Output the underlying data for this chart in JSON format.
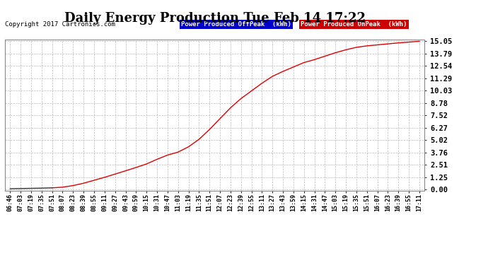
{
  "title": "Daily Energy Production Tue Feb 14 17:22",
  "copyright_text": "Copyright 2017 Cartronics.com",
  "legend_offpeak_label": "Power Produced OffPeak  (kWh)",
  "legend_onpeak_label": "Power Produced OnPeak  (kWh)",
  "legend_offpeak_bg": "#0000cc",
  "legend_onpeak_bg": "#cc0000",
  "background_color": "#ffffff",
  "plot_bg_color": "#ffffff",
  "grid_color": "#bbbbbb",
  "title_fontsize": 13,
  "yticks": [
    0.0,
    1.25,
    2.51,
    3.76,
    5.02,
    6.27,
    7.52,
    8.78,
    10.03,
    11.29,
    12.54,
    13.79,
    15.05
  ],
  "ymax": 15.05,
  "ymin": 0.0,
  "xtick_labels": [
    "06:46",
    "07:03",
    "07:19",
    "07:35",
    "07:51",
    "08:07",
    "08:23",
    "08:39",
    "08:55",
    "09:11",
    "09:27",
    "09:43",
    "09:59",
    "10:15",
    "10:31",
    "10:47",
    "11:03",
    "11:19",
    "11:35",
    "11:51",
    "12:07",
    "12:23",
    "12:39",
    "12:55",
    "13:11",
    "13:27",
    "13:43",
    "13:59",
    "14:15",
    "14:31",
    "14:47",
    "15:03",
    "15:19",
    "15:35",
    "15:51",
    "16:07",
    "16:23",
    "16:39",
    "16:55",
    "17:11"
  ],
  "line_color_red": "#dd0000",
  "line_color_dark": "#333333",
  "split_idx": 4,
  "y_values": [
    0.06,
    0.08,
    0.1,
    0.12,
    0.15,
    0.22,
    0.38,
    0.62,
    0.92,
    1.22,
    1.55,
    1.88,
    2.22,
    2.58,
    3.05,
    3.48,
    3.78,
    4.32,
    5.08,
    6.08,
    7.18,
    8.28,
    9.22,
    10.0,
    10.78,
    11.48,
    11.98,
    12.43,
    12.88,
    13.18,
    13.53,
    13.88,
    14.18,
    14.43,
    14.58,
    14.68,
    14.78,
    14.88,
    14.96,
    15.05
  ]
}
